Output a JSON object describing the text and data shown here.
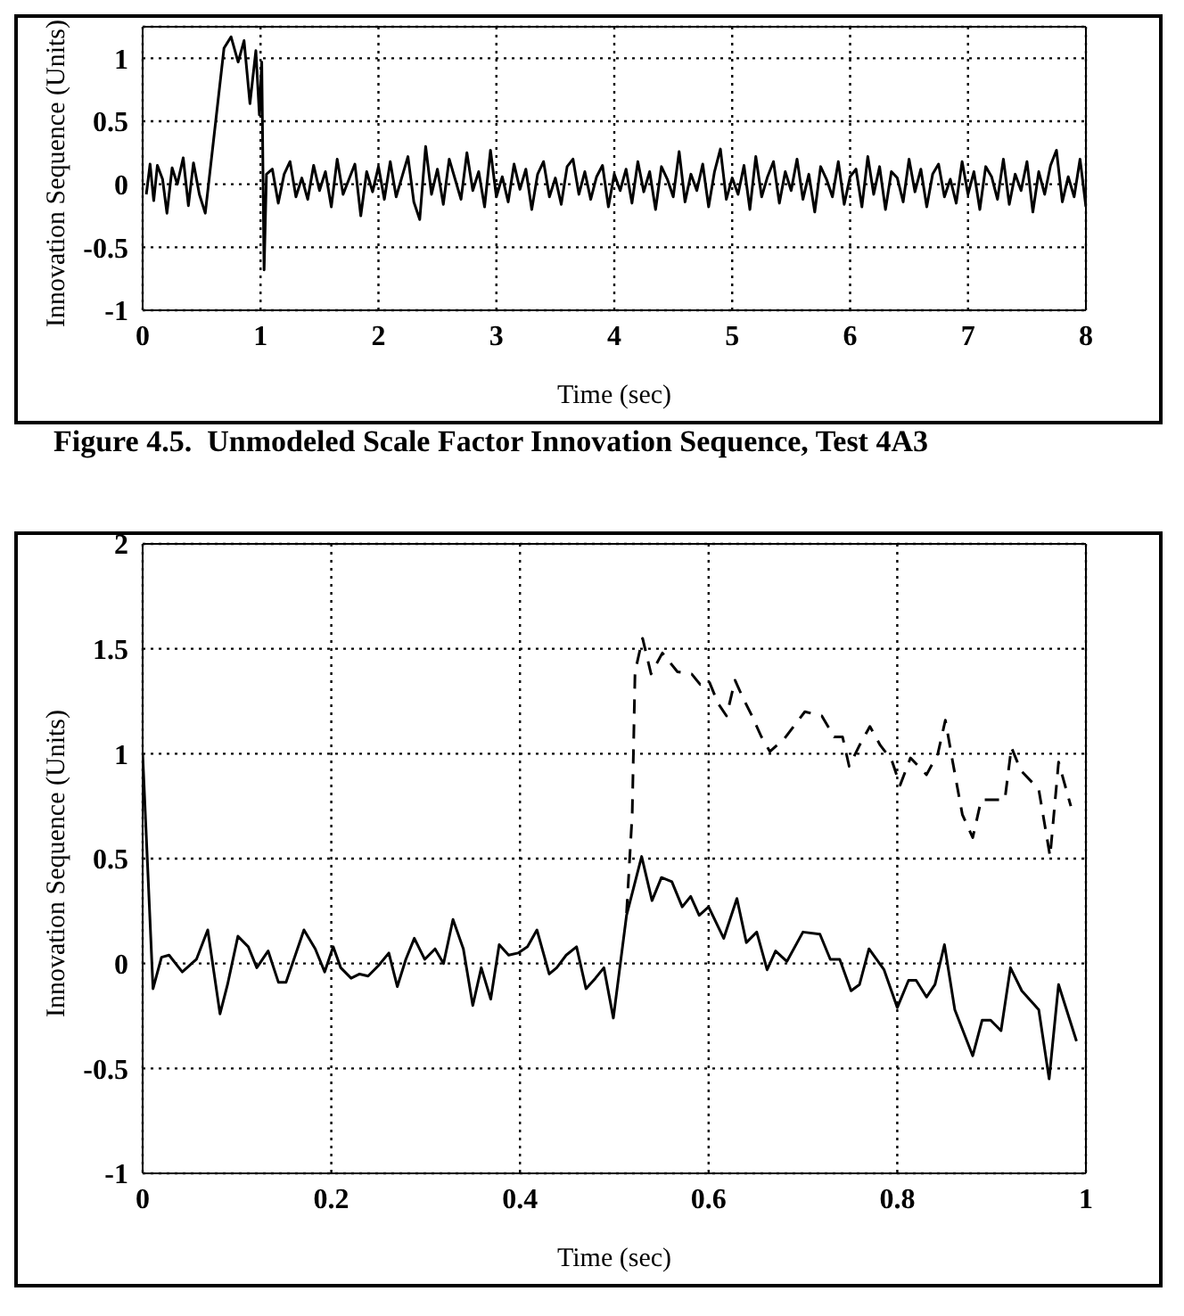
{
  "chart_data": [
    {
      "type": "line",
      "xlabel": "Time (sec)",
      "ylabel": "Innovation Sequence (Units)",
      "annotations": [
        "Figure 4.5.  Unmodeled Scale Factor Innovation Sequence, Test 4A3"
      ],
      "xlim": [
        0,
        8
      ],
      "xticks": [
        0,
        1,
        2,
        3,
        4,
        5,
        6,
        7,
        8
      ],
      "ylim": [
        -1,
        1.25
      ],
      "yticks": [
        -1,
        -0.5,
        0,
        0.5,
        1
      ],
      "grid": true,
      "line_style": "solid",
      "series": [
        {
          "color": "#000000",
          "x": [
            0.031,
            0.063,
            0.094,
            0.125,
            0.169,
            0.206,
            0.25,
            0.294,
            0.344,
            0.388,
            0.431,
            0.481,
            0.531,
            0.69,
            0.75,
            0.81,
            0.86,
            0.91,
            0.96,
            0.99,
            1.01,
            1.03,
            1.05,
            1.1,
            1.15,
            1.2,
            1.25,
            1.3,
            1.35,
            1.4,
            1.45,
            1.5,
            1.55,
            1.6,
            1.65,
            1.7,
            1.75,
            1.8,
            1.85,
            1.9,
            1.95,
            2,
            2.05,
            2.1,
            2.15,
            2.2,
            2.25,
            2.3,
            2.35,
            2.4,
            2.45,
            2.5,
            2.55,
            2.6,
            2.65,
            2.7,
            2.75,
            2.8,
            2.85,
            2.9,
            2.95,
            3,
            3.05,
            3.1,
            3.15,
            3.2,
            3.25,
            3.3,
            3.35,
            3.4,
            3.45,
            3.5,
            3.55,
            3.6,
            3.65,
            3.7,
            3.75,
            3.8,
            3.85,
            3.9,
            3.95,
            4,
            4.05,
            4.1,
            4.15,
            4.2,
            4.25,
            4.3,
            4.35,
            4.4,
            4.45,
            4.5,
            4.55,
            4.6,
            4.65,
            4.7,
            4.75,
            4.8,
            4.85,
            4.9,
            4.95,
            5,
            5.05,
            5.1,
            5.15,
            5.2,
            5.25,
            5.3,
            5.35,
            5.4,
            5.45,
            5.5,
            5.55,
            5.6,
            5.65,
            5.7,
            5.75,
            5.8,
            5.85,
            5.9,
            5.95,
            6,
            6.05,
            6.1,
            6.15,
            6.2,
            6.25,
            6.3,
            6.35,
            6.4,
            6.45,
            6.5,
            6.55,
            6.6,
            6.65,
            6.7,
            6.75,
            6.8,
            6.85,
            6.9,
            6.95,
            7,
            7.05,
            7.1,
            7.15,
            7.2,
            7.25,
            7.3,
            7.35,
            7.4,
            7.45,
            7.5,
            7.55,
            7.6,
            7.65,
            7.7,
            7.75,
            7.8,
            7.85,
            7.9,
            7.95,
            8
          ],
          "values": [
            -0.08,
            0.16,
            -0.13,
            0.15,
            0.04,
            -0.23,
            0.13,
            0,
            0.21,
            -0.17,
            0.17,
            -0.08,
            -0.23,
            1.08,
            1.17,
            0.97,
            1.14,
            0.64,
            1.06,
            0.55,
            0.97,
            -0.68,
            0.08,
            0.12,
            -0.15,
            0.08,
            0.18,
            -0.1,
            0.05,
            -0.12,
            0.15,
            -0.05,
            0.1,
            -0.18,
            0.2,
            -0.08,
            0.04,
            0.16,
            -0.25,
            0.1,
            -0.06,
            0.14,
            -0.12,
            0.18,
            -0.1,
            0.06,
            0.22,
            -0.14,
            -0.28,
            0.3,
            -0.08,
            0.12,
            -0.16,
            0.2,
            0.04,
            -0.12,
            0.25,
            -0.05,
            0.1,
            -0.18,
            0.27,
            -0.1,
            0.06,
            -0.14,
            0.16,
            -0.04,
            0.12,
            -0.2,
            0.08,
            0.18,
            -0.1,
            0.05,
            -0.16,
            0.14,
            0.2,
            -0.08,
            0.1,
            -0.12,
            0.06,
            0.15,
            -0.18,
            0.08,
            -0.05,
            0.12,
            -0.15,
            0.18,
            -0.06,
            0.1,
            -0.2,
            0.14,
            0.04,
            -0.1,
            0.26,
            -0.14,
            0.08,
            -0.05,
            0.16,
            -0.18,
            0.1,
            0.28,
            -0.12,
            0.05,
            -0.08,
            0.15,
            -0.2,
            0.22,
            -0.1,
            0.06,
            0.18,
            -0.15,
            0.1,
            -0.05,
            0.2,
            -0.12,
            0.08,
            -0.22,
            0.14,
            0.04,
            -0.1,
            0.18,
            -0.16,
            0.06,
            0.12,
            -0.18,
            0.22,
            -0.08,
            0.14,
            -0.2,
            0.1,
            0.05,
            -0.14,
            0.2,
            -0.06,
            0.12,
            -0.18,
            0.08,
            0.16,
            -0.1,
            0.04,
            -0.15,
            0.18,
            -0.08,
            0.1,
            -0.2,
            0.14,
            0.06,
            -0.12,
            0.2,
            -0.16,
            0.08,
            -0.05,
            0.18,
            -0.22,
            0.1,
            -0.08,
            0.15,
            0.27,
            -0.14,
            0.06,
            -0.1,
            0.2,
            -0.18
          ]
        }
      ]
    },
    {
      "type": "line",
      "xlabel": "Time (sec)",
      "ylabel": "Innovation Sequence (Units)",
      "xlim": [
        0,
        1
      ],
      "xticks": [
        0,
        0.2,
        0.4,
        0.6,
        0.8,
        1
      ],
      "ylim": [
        -1,
        2
      ],
      "yticks": [
        -1,
        -0.5,
        0,
        0.5,
        1,
        1.5,
        2
      ],
      "grid": true,
      "series": [
        {
          "color": "#000000",
          "line_style": "solid",
          "x": [
            0,
            0.011,
            0.02,
            0.028,
            0.042,
            0.057,
            0.069,
            0.082,
            0.09,
            0.101,
            0.112,
            0.121,
            0.133,
            0.144,
            0.152,
            0.171,
            0.183,
            0.193,
            0.202,
            0.21,
            0.221,
            0.23,
            0.239,
            0.25,
            0.261,
            0.27,
            0.279,
            0.288,
            0.299,
            0.31,
            0.319,
            0.329,
            0.34,
            0.35,
            0.359,
            0.369,
            0.378,
            0.388,
            0.398,
            0.408,
            0.418,
            0.431,
            0.439,
            0.449,
            0.46,
            0.47,
            0.48,
            0.489,
            0.499,
            0.513,
            0.529,
            0.54,
            0.55,
            0.561,
            0.572,
            0.581,
            0.59,
            0.6,
            0.616,
            0.63,
            0.64,
            0.651,
            0.662,
            0.671,
            0.683,
            0.7,
            0.718,
            0.729,
            0.739,
            0.751,
            0.76,
            0.77,
            0.786,
            0.8,
            0.812,
            0.82,
            0.831,
            0.84,
            0.85,
            0.861,
            0.88,
            0.89,
            0.899,
            0.91,
            0.92,
            0.932,
            0.95,
            0.961,
            0.971,
            0.99
          ],
          "values": [
            1,
            -0.12,
            0.03,
            0.04,
            -0.04,
            0.02,
            0.16,
            -0.24,
            -0.1,
            0.13,
            0.08,
            -0.02,
            0.06,
            -0.09,
            -0.09,
            0.16,
            0.07,
            -0.04,
            0.08,
            -0.02,
            -0.07,
            -0.05,
            -0.06,
            -0.01,
            0.05,
            -0.11,
            0.02,
            0.12,
            0.02,
            0.07,
            0,
            0.21,
            0.07,
            -0.2,
            -0.02,
            -0.17,
            0.09,
            0.04,
            0.05,
            0.08,
            0.16,
            -0.05,
            -0.02,
            0.04,
            0.08,
            -0.12,
            -0.07,
            -0.02,
            -0.26,
            0.23,
            0.51,
            0.3,
            0.41,
            0.39,
            0.27,
            0.32,
            0.23,
            0.27,
            0.12,
            0.31,
            0.1,
            0.15,
            -0.03,
            0.06,
            0.01,
            0.15,
            0.14,
            0.02,
            0.02,
            -0.13,
            -0.1,
            0.07,
            -0.03,
            -0.21,
            -0.08,
            -0.08,
            -0.16,
            -0.1,
            0.09,
            -0.22,
            -0.44,
            -0.27,
            -0.27,
            -0.32,
            -0.02,
            -0.13,
            -0.22,
            -0.55,
            -0.1,
            -0.37
          ]
        },
        {
          "color": "#000000",
          "line_style": "dashed",
          "x": [
            0.513,
            0.519,
            0.522,
            0.53,
            0.539,
            0.551,
            0.567,
            0.582,
            0.591,
            0.6,
            0.61,
            0.619,
            0.628,
            0.636,
            0.646,
            0.656,
            0.665,
            0.68,
            0.702,
            0.72,
            0.733,
            0.742,
            0.749,
            0.76,
            0.771,
            0.782,
            0.794,
            0.803,
            0.814,
            0.831,
            0.843,
            0.851,
            0.858,
            0.869,
            0.88,
            0.889,
            0.914,
            0.921,
            0.931,
            0.95,
            0.962,
            0.971,
            0.984
          ],
          "values": [
            0.24,
            0.71,
            1.39,
            1.55,
            1.38,
            1.48,
            1.39,
            1.38,
            1.33,
            1.35,
            1.24,
            1.18,
            1.35,
            1.27,
            1.18,
            1.08,
            1.01,
            1.07,
            1.2,
            1.18,
            1.08,
            1.08,
            0.94,
            1.04,
            1.13,
            1.04,
            0.97,
            0.85,
            0.98,
            0.9,
            1,
            1.16,
            0.98,
            0.71,
            0.6,
            0.78,
            0.78,
            1.03,
            0.92,
            0.83,
            0.51,
            0.96,
            0.75
          ]
        }
      ]
    }
  ]
}
